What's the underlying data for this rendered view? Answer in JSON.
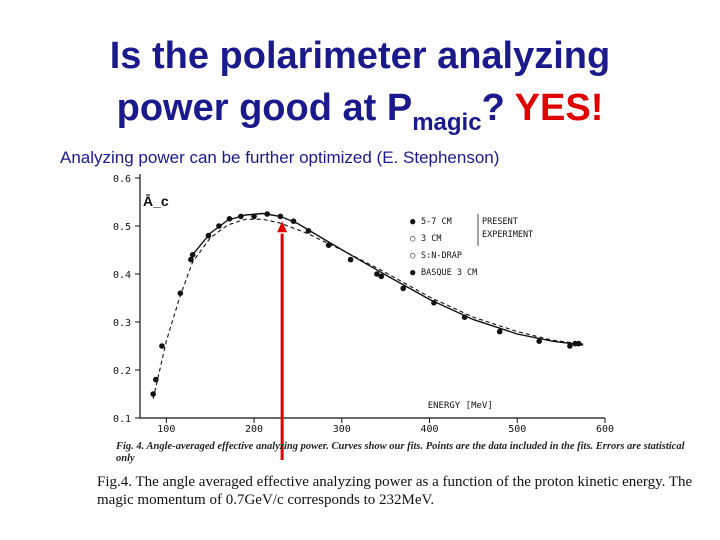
{
  "slide": {
    "title_line1": "Is the polarimeter analyzing",
    "title_line2_prefix": "power good at P",
    "title_subscript": "magic",
    "title_line2_suffix": "?",
    "title_yes": "YES!",
    "subtitle": "Analyzing power can be further optimized (E. Stephenson)",
    "caption_small": "Fig. 4. Angle-averaged effective analyzing power. Curves show our fits. Points are the data included in the fits. Errors are statistical only",
    "caption_big": "Fig.4.  The angle averaged effective analyzing power as a function of the proton kinetic energy.  The magic momentum of 0.7GeV/c corresponds to 232MeV."
  },
  "colors": {
    "title": "#1a1a8c",
    "yes": "#e00000",
    "arrow": "#e00000",
    "ink": "#111111"
  },
  "chart_data": {
    "type": "scatter",
    "ylabel": "Ā_c",
    "xlabel": "ENERGY   [MeV]",
    "xlim": [
      70,
      600
    ],
    "ylim": [
      0.1,
      0.6
    ],
    "x_ticks": [
      100,
      200,
      300,
      400,
      500,
      600
    ],
    "y_ticks": [
      0.1,
      0.2,
      0.3,
      0.4,
      0.5,
      0.6
    ],
    "y_tick_labels": [
      "0.1",
      "0.2",
      "0.3",
      "0.4",
      "0.5",
      "0.6"
    ],
    "legend_title": [
      "PRESENT",
      "EXPERIMENT"
    ],
    "legend": [
      "5-7 CM",
      "3 CM",
      "S:N-DRAP",
      "BASQUE 3 CM"
    ],
    "points": [
      {
        "x": 85,
        "y": 0.15
      },
      {
        "x": 88,
        "y": 0.18
      },
      {
        "x": 95,
        "y": 0.25
      },
      {
        "x": 116,
        "y": 0.36
      },
      {
        "x": 128,
        "y": 0.43
      },
      {
        "x": 130,
        "y": 0.44
      },
      {
        "x": 148,
        "y": 0.48
      },
      {
        "x": 160,
        "y": 0.5
      },
      {
        "x": 172,
        "y": 0.515
      },
      {
        "x": 185,
        "y": 0.52
      },
      {
        "x": 200,
        "y": 0.52
      },
      {
        "x": 215,
        "y": 0.525
      },
      {
        "x": 230,
        "y": 0.52
      },
      {
        "x": 245,
        "y": 0.51
      },
      {
        "x": 262,
        "y": 0.49
      },
      {
        "x": 285,
        "y": 0.46
      },
      {
        "x": 310,
        "y": 0.43
      },
      {
        "x": 340,
        "y": 0.4
      },
      {
        "x": 345,
        "y": 0.395
      },
      {
        "x": 370,
        "y": 0.37
      },
      {
        "x": 405,
        "y": 0.34
      },
      {
        "x": 440,
        "y": 0.31
      },
      {
        "x": 480,
        "y": 0.28
      },
      {
        "x": 525,
        "y": 0.26
      },
      {
        "x": 560,
        "y": 0.25
      },
      {
        "x": 566,
        "y": 0.255
      },
      {
        "x": 570,
        "y": 0.255
      }
    ],
    "solid_fit": [
      [
        130,
        0.44
      ],
      [
        150,
        0.485
      ],
      [
        170,
        0.512
      ],
      [
        190,
        0.523
      ],
      [
        210,
        0.526
      ],
      [
        230,
        0.52
      ],
      [
        250,
        0.505
      ],
      [
        280,
        0.472
      ],
      [
        310,
        0.44
      ],
      [
        350,
        0.398
      ],
      [
        400,
        0.347
      ],
      [
        450,
        0.305
      ],
      [
        500,
        0.275
      ],
      [
        540,
        0.26
      ],
      [
        575,
        0.252
      ]
    ],
    "dashed_fit": [
      [
        85,
        0.14
      ],
      [
        100,
        0.26
      ],
      [
        115,
        0.35
      ],
      [
        130,
        0.425
      ],
      [
        150,
        0.475
      ],
      [
        170,
        0.502
      ],
      [
        190,
        0.514
      ],
      [
        210,
        0.514
      ],
      [
        230,
        0.506
      ],
      [
        260,
        0.485
      ],
      [
        300,
        0.45
      ],
      [
        350,
        0.403
      ],
      [
        400,
        0.352
      ],
      [
        450,
        0.31
      ],
      [
        500,
        0.28
      ],
      [
        540,
        0.262
      ],
      [
        575,
        0.254
      ]
    ],
    "arrow_x": 232
  }
}
